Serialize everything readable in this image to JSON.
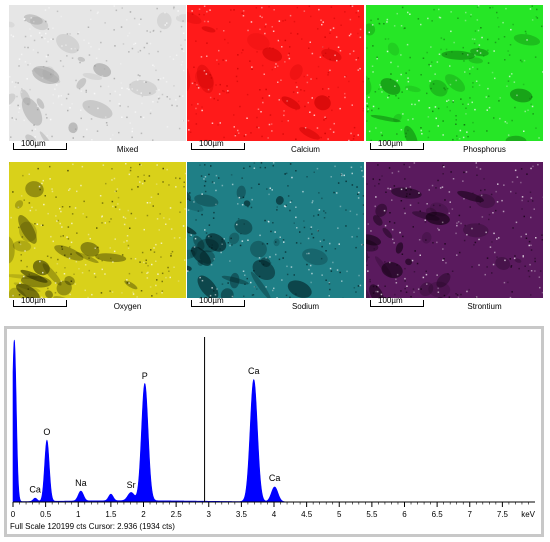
{
  "maps": [
    {
      "id": "mixed",
      "label": "Mixed",
      "scale": "100µm",
      "color": "#9a9a9a",
      "bg": "#e6e6e6"
    },
    {
      "id": "calcium",
      "label": "Calcium",
      "scale": "100µm",
      "color": "#c20000",
      "bg": "#ff1a1a"
    },
    {
      "id": "phosphorus",
      "label": "Phosphorus",
      "scale": "100µm",
      "color": "#0d6e0d",
      "bg": "#26e626"
    },
    {
      "id": "oxygen",
      "label": "Oxygen",
      "scale": "100µm",
      "color": "#2a2a00",
      "bg": "#d9d11a"
    },
    {
      "id": "sodium",
      "label": "Sodium",
      "scale": "100µm",
      "color": "#00181c",
      "bg": "#1f7f86"
    },
    {
      "id": "strontium",
      "label": "Strontium",
      "scale": "100µm",
      "color": "#0e000e",
      "bg": "#5a1a5e"
    }
  ],
  "chart_data": {
    "type": "area",
    "xlabel": "keV",
    "xlim": [
      0,
      8
    ],
    "x_ticks": [
      "0",
      "0.5",
      "1",
      "1.5",
      "2",
      "2.5",
      "3",
      "3.5",
      "4",
      "4.5",
      "5",
      "5.5",
      "6",
      "6.5",
      "7",
      "7.5"
    ],
    "ylim": [
      0,
      1
    ],
    "cursor_kev": 2.936,
    "status": "Full Scale 120199 cts Cursor: 2.936  (1934 cts)",
    "fill_color": "#0000ff",
    "peaks": [
      {
        "label": "",
        "kev": 0.02,
        "height": 0.98,
        "width": 0.03
      },
      {
        "label": "Ca",
        "kev": 0.34,
        "height": 0.02,
        "width": 0.03
      },
      {
        "label": "O",
        "kev": 0.52,
        "height": 0.37,
        "width": 0.035
      },
      {
        "label": "Na",
        "kev": 1.04,
        "height": 0.06,
        "width": 0.04
      },
      {
        "label": "",
        "kev": 1.5,
        "height": 0.04,
        "width": 0.035
      },
      {
        "label": "Sr",
        "kev": 1.81,
        "height": 0.05,
        "width": 0.05
      },
      {
        "label": "P",
        "kev": 2.02,
        "height": 0.71,
        "width": 0.05
      },
      {
        "label": "Ca",
        "kev": 3.69,
        "height": 0.74,
        "width": 0.055
      },
      {
        "label": "Ca",
        "kev": 4.01,
        "height": 0.09,
        "width": 0.05
      }
    ]
  }
}
